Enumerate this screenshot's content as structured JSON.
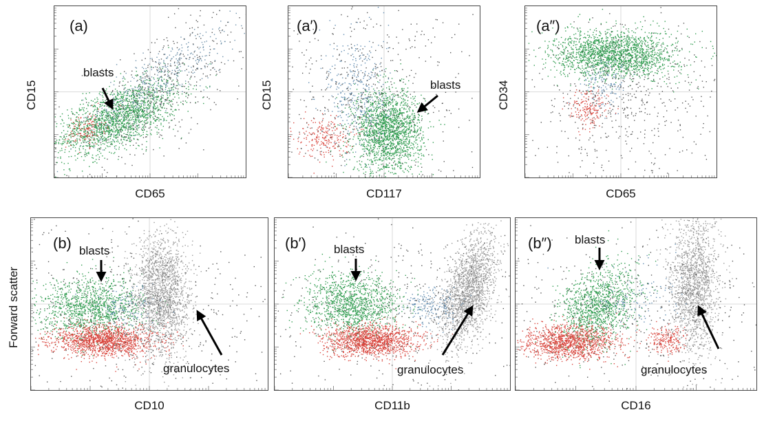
{
  "chart_data": [
    {
      "type": "scatter",
      "panel": "(a)",
      "xlabel": "CD65",
      "ylabel": "CD15",
      "annotations": [
        "blasts"
      ],
      "populations": [
        {
          "color": "#2e9b4e",
          "cx": 0.33,
          "cy": 0.35,
          "sx": 0.16,
          "sy": 0.11,
          "corr": 0.6,
          "n": 1800
        },
        {
          "color": "#6a8ea8",
          "cx": 0.55,
          "cy": 0.58,
          "sx": 0.2,
          "sy": 0.17,
          "corr": 0.85,
          "n": 450
        },
        {
          "color": "#d9453d",
          "cx": 0.16,
          "cy": 0.28,
          "sx": 0.05,
          "sy": 0.05,
          "corr": 0.2,
          "n": 120
        },
        {
          "color": "#555555",
          "cx": 0.55,
          "cy": 0.5,
          "sx": 0.26,
          "sy": 0.24,
          "corr": 0.75,
          "n": 500
        }
      ]
    },
    {
      "type": "scatter",
      "panel": "(a′)",
      "xlabel": "CD117",
      "ylabel": "CD15",
      "annotations": [
        "blasts"
      ],
      "populations": [
        {
          "color": "#2e9b4e",
          "cx": 0.52,
          "cy": 0.27,
          "sx": 0.09,
          "sy": 0.12,
          "corr": 0,
          "n": 1800
        },
        {
          "color": "#5f8bb0",
          "cx": 0.36,
          "cy": 0.5,
          "sx": 0.08,
          "sy": 0.18,
          "corr": 0,
          "n": 350
        },
        {
          "color": "#d9453d",
          "cx": 0.18,
          "cy": 0.24,
          "sx": 0.07,
          "sy": 0.06,
          "corr": 0,
          "n": 220
        },
        {
          "color": "#555555",
          "cx": 0.4,
          "cy": 0.5,
          "sx": 0.26,
          "sy": 0.26,
          "corr": 0,
          "n": 500
        }
      ]
    },
    {
      "type": "scatter",
      "panel": "(a″)",
      "xlabel": "CD65",
      "ylabel": "CD34",
      "annotations": [],
      "populations": [
        {
          "color": "#2e9b4e",
          "cx": 0.47,
          "cy": 0.72,
          "sx": 0.16,
          "sy": 0.07,
          "corr": 0,
          "n": 1800
        },
        {
          "color": "#5f8bb0",
          "cx": 0.42,
          "cy": 0.55,
          "sx": 0.06,
          "sy": 0.07,
          "corr": 0,
          "n": 120
        },
        {
          "color": "#d9453d",
          "cx": 0.33,
          "cy": 0.4,
          "sx": 0.05,
          "sy": 0.06,
          "corr": 0,
          "n": 180
        },
        {
          "color": "#555555",
          "cx": 0.52,
          "cy": 0.45,
          "sx": 0.25,
          "sy": 0.22,
          "corr": 0,
          "n": 550
        }
      ]
    },
    {
      "type": "scatter",
      "panel": "(b)",
      "xlabel": "CD10",
      "ylabel": "Forward scatter",
      "annotations": [
        "blasts",
        "granulocytes"
      ],
      "populations": [
        {
          "color": "#2e9b4e",
          "cx": 0.26,
          "cy": 0.48,
          "sx": 0.11,
          "sy": 0.09,
          "corr": 0,
          "n": 1200
        },
        {
          "color": "#d9453d",
          "cx": 0.31,
          "cy": 0.29,
          "sx": 0.11,
          "sy": 0.045,
          "corr": 0,
          "n": 1400
        },
        {
          "color": "#9a9a9a",
          "cx": 0.55,
          "cy": 0.55,
          "sx": 0.06,
          "sy": 0.18,
          "corr": 0,
          "n": 1800
        },
        {
          "color": "#5f8bb0",
          "cx": 0.4,
          "cy": 0.48,
          "sx": 0.06,
          "sy": 0.08,
          "corr": 0,
          "n": 120
        },
        {
          "color": "#555555",
          "cx": 0.45,
          "cy": 0.45,
          "sx": 0.3,
          "sy": 0.25,
          "corr": 0,
          "n": 450
        }
      ]
    },
    {
      "type": "scatter",
      "panel": "(b′)",
      "xlabel": "CD11b",
      "ylabel": "",
      "annotations": [
        "blasts",
        "granulocytes"
      ],
      "populations": [
        {
          "color": "#2e9b4e",
          "cx": 0.33,
          "cy": 0.5,
          "sx": 0.1,
          "sy": 0.09,
          "corr": 0,
          "n": 1200
        },
        {
          "color": "#d9453d",
          "cx": 0.41,
          "cy": 0.29,
          "sx": 0.1,
          "sy": 0.045,
          "corr": 0,
          "n": 1300
        },
        {
          "color": "#9a9a9a",
          "cx": 0.82,
          "cy": 0.58,
          "sx": 0.06,
          "sy": 0.17,
          "corr": 0.5,
          "n": 1800
        },
        {
          "color": "#5f8bb0",
          "cx": 0.67,
          "cy": 0.48,
          "sx": 0.06,
          "sy": 0.06,
          "corr": 0,
          "n": 180
        },
        {
          "color": "#555555",
          "cx": 0.5,
          "cy": 0.45,
          "sx": 0.3,
          "sy": 0.25,
          "corr": 0,
          "n": 450
        }
      ]
    },
    {
      "type": "scatter",
      "panel": "(b″)",
      "xlabel": "CD16",
      "ylabel": "",
      "annotations": [
        "blasts",
        "granulocytes"
      ],
      "populations": [
        {
          "color": "#2e9b4e",
          "cx": 0.34,
          "cy": 0.48,
          "sx": 0.08,
          "sy": 0.12,
          "corr": 0.3,
          "n": 1200
        },
        {
          "color": "#d9453d",
          "cx": 0.22,
          "cy": 0.28,
          "sx": 0.1,
          "sy": 0.05,
          "corr": 0,
          "n": 1200
        },
        {
          "color": "#9a9a9a",
          "cx": 0.74,
          "cy": 0.62,
          "sx": 0.05,
          "sy": 0.2,
          "corr": 0,
          "n": 1600
        },
        {
          "color": "#d9453d",
          "cx": 0.63,
          "cy": 0.29,
          "sx": 0.04,
          "sy": 0.04,
          "corr": 0,
          "n": 200
        },
        {
          "color": "#5f8bb0",
          "cx": 0.5,
          "cy": 0.55,
          "sx": 0.1,
          "sy": 0.1,
          "corr": 0,
          "n": 120
        },
        {
          "color": "#555555",
          "cx": 0.5,
          "cy": 0.45,
          "sx": 0.3,
          "sy": 0.25,
          "corr": 0,
          "n": 450
        }
      ]
    }
  ]
}
